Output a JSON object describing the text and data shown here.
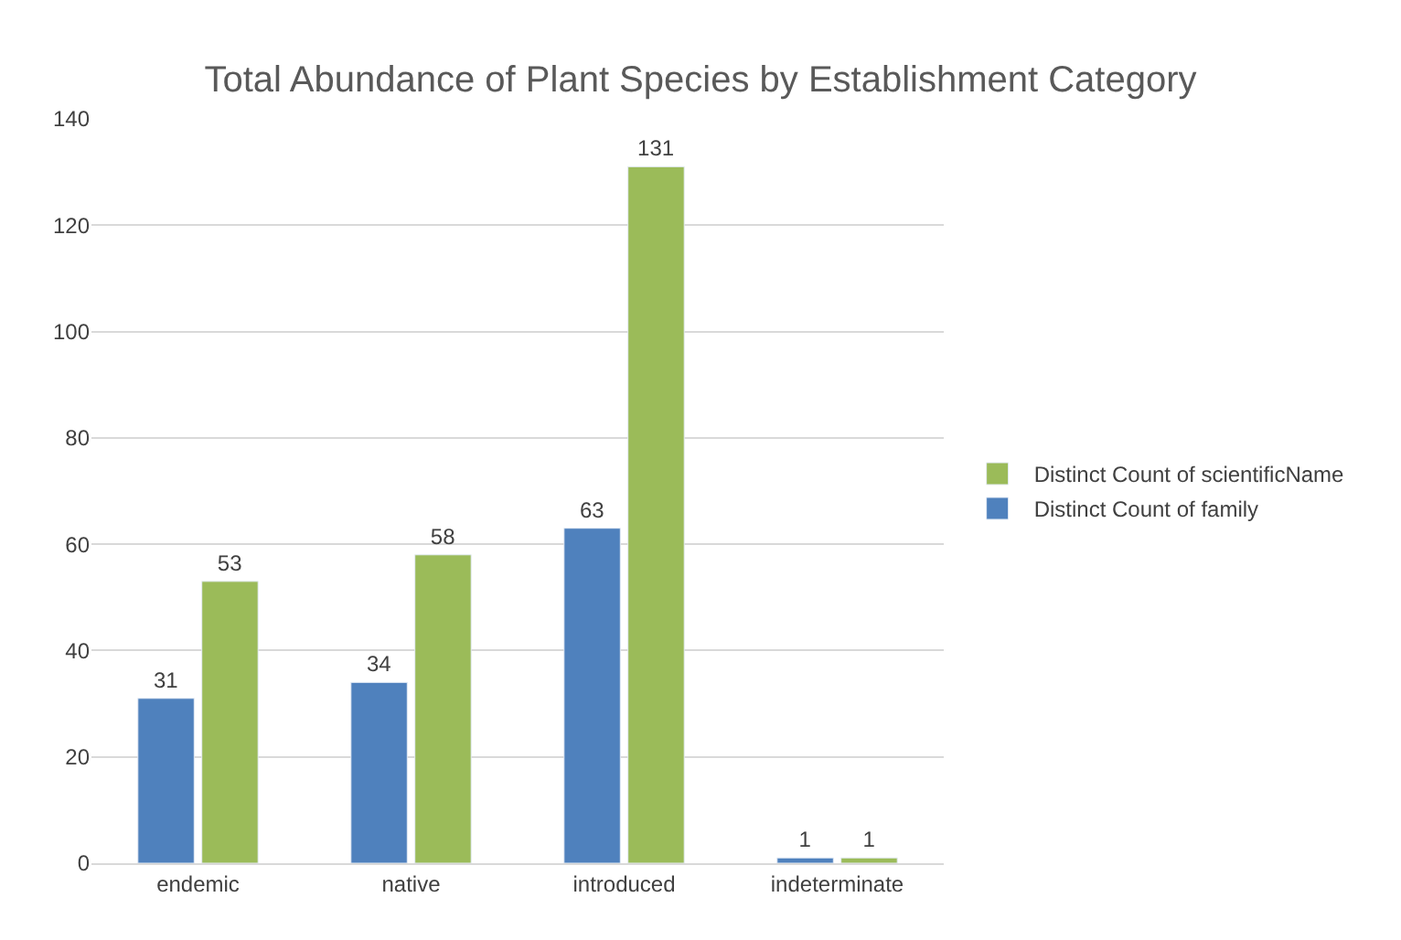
{
  "chart_data": {
    "type": "bar",
    "title": "Total Abundance of Plant Species by Establishment Category",
    "categories": [
      "endemic",
      "native",
      "introduced",
      "indeterminate"
    ],
    "series": [
      {
        "name": "Distinct Count of family",
        "color": "#4f81bd",
        "values": [
          31,
          34,
          63,
          1
        ]
      },
      {
        "name": "Distinct Count of scientificName",
        "color": "#9bbb59",
        "values": [
          53,
          58,
          131,
          1
        ]
      }
    ],
    "ylim": [
      0,
      140
    ],
    "yticks": [
      0,
      20,
      40,
      60,
      80,
      100,
      120,
      140
    ],
    "grid": "y",
    "legend": "right",
    "data_labels": true
  }
}
